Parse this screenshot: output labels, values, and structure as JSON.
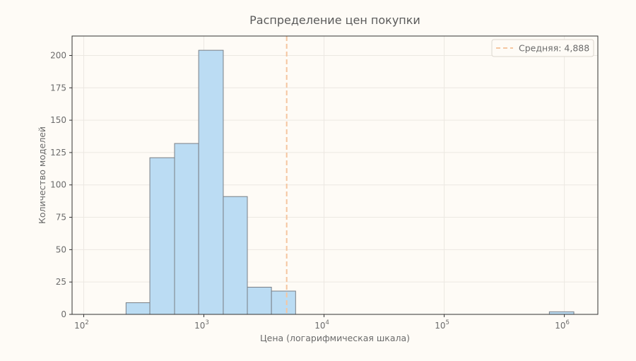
{
  "chart_data": {
    "type": "bar",
    "title": "Распределение цен покупки",
    "xlabel": "Цена (логарифмическая шкала)",
    "ylabel": "Количество моделей",
    "x_scale": "log",
    "xlim": [
      80,
      1900000
    ],
    "ylim": [
      0,
      215
    ],
    "x_ticks": [
      {
        "base": "10",
        "exp": "2",
        "value": 100
      },
      {
        "base": "10",
        "exp": "3",
        "value": 1000
      },
      {
        "base": "10",
        "exp": "4",
        "value": 10000
      },
      {
        "base": "10",
        "exp": "5",
        "value": 100000
      },
      {
        "base": "10",
        "exp": "6",
        "value": 1000000
      }
    ],
    "y_ticks": [
      0,
      25,
      50,
      75,
      100,
      125,
      150,
      175,
      200
    ],
    "bins": [
      {
        "x0": 225,
        "x1": 355,
        "count": 9
      },
      {
        "x0": 355,
        "x1": 570,
        "count": 121
      },
      {
        "x0": 570,
        "x1": 905,
        "count": 132
      },
      {
        "x0": 905,
        "x1": 1450,
        "count": 204
      },
      {
        "x0": 1450,
        "x1": 2300,
        "count": 91
      },
      {
        "x0": 2300,
        "x1": 3650,
        "count": 21
      },
      {
        "x0": 3650,
        "x1": 5800,
        "count": 18
      },
      {
        "x0": 750000,
        "x1": 1200000,
        "count": 2
      }
    ],
    "mean_line": {
      "value": 4888,
      "label": "Средняя: 4,888"
    },
    "legend_position": "top-right",
    "grid": true,
    "colors": {
      "bar_fill": "#bbdcf3",
      "bar_edge": "#7a7f86",
      "mean_line": "#f5c6a0",
      "grid": "#ece8e2",
      "axes": "#333333",
      "background": "#fefbf6"
    }
  }
}
